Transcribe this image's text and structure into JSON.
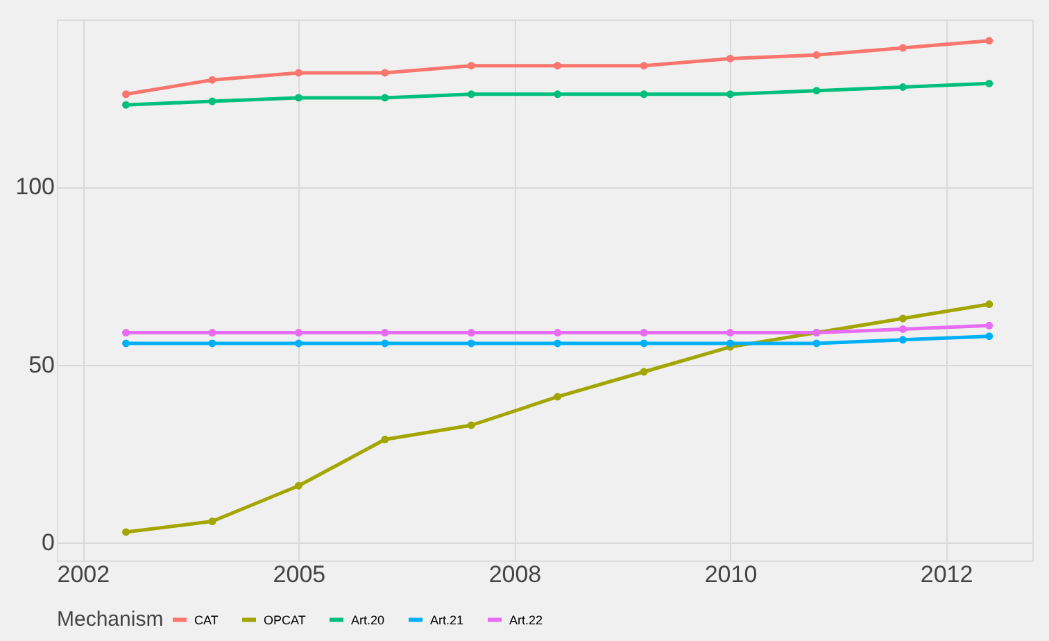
{
  "chart_data": {
    "type": "line",
    "legend_title": "Mechanism",
    "legend": "bottom",
    "grid": true,
    "marker": "circle",
    "line_style": "solid",
    "x": [
      2003,
      2004,
      2005,
      2006,
      2007,
      2008,
      2009,
      2010,
      2011,
      2012,
      2013
    ],
    "xlim": [
      2002.2,
      2013.5
    ],
    "xticks": [
      {
        "value": 2002.5,
        "label": "2002"
      },
      2005,
      {
        "value": 2007.5,
        "label": "2008"
      },
      2010,
      {
        "value": 2012.5,
        "label": "2012"
      }
    ],
    "ylim": [
      -5,
      147
    ],
    "yticks": [
      0,
      50,
      100
    ],
    "series": [
      {
        "name": "CAT",
        "color": "#f8766d",
        "values": [
          126,
          130,
          132,
          132,
          134,
          134,
          134,
          136,
          137,
          139,
          141
        ]
      },
      {
        "name": "OPCAT",
        "color": "#a3a500",
        "values": [
          3,
          6,
          16,
          29,
          33,
          41,
          48,
          55,
          59,
          63,
          67
        ]
      },
      {
        "name": "Art.20",
        "color": "#00bf7d",
        "values": [
          123,
          124,
          125,
          125,
          126,
          126,
          126,
          126,
          127,
          128,
          129
        ]
      },
      {
        "name": "Art.21",
        "color": "#00b0f6",
        "values": [
          56,
          56,
          56,
          56,
          56,
          56,
          56,
          56,
          56,
          57,
          58
        ]
      },
      {
        "name": "Art.22",
        "color": "#e76bf3",
        "values": [
          59,
          59,
          59,
          59,
          59,
          59,
          59,
          59,
          59,
          60,
          61
        ]
      }
    ]
  }
}
